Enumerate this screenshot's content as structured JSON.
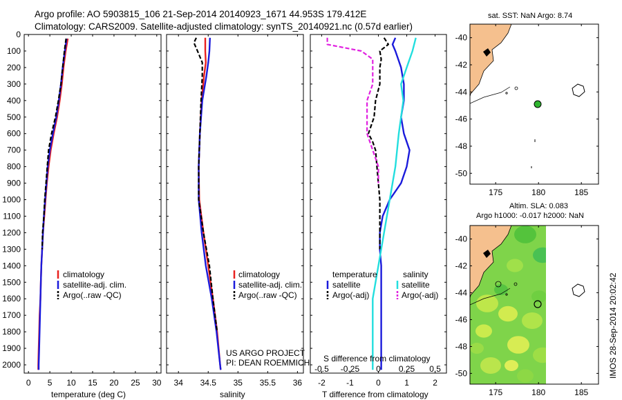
{
  "header": {
    "line1": "Argo profile: AO 5903815_106 21-Sep-2014 20140923_1671 44.953S 179.412E",
    "line2": "Climatology: CARS2009. Satellite-adjusted climatology: synTS_20140921.nc (0.57d earlier)"
  },
  "colors": {
    "climatology": "#e8201e",
    "satellite": "#1a1adb",
    "argo": "#000000",
    "sat_diff_S": "#22dede",
    "argo_diff_S": "#e020e0",
    "land": "#f5c08e",
    "argo_marker": "#2fb52f"
  },
  "chart_data": [
    {
      "type": "line",
      "name": "temperature-profile",
      "xlabel": "temperature (deg C)",
      "xlim": [
        -1,
        31
      ],
      "ylim": [
        2050,
        0
      ],
      "xticks": [
        0,
        5,
        10,
        15,
        20,
        25,
        30
      ],
      "yticks": [
        0,
        100,
        200,
        300,
        400,
        500,
        600,
        700,
        800,
        900,
        1000,
        1100,
        1200,
        1300,
        1400,
        1500,
        1600,
        1700,
        1800,
        1900,
        2000
      ],
      "legend": [
        "climatology",
        "satellite-adj. clim.",
        "Argo(..raw -QC)"
      ],
      "series": [
        {
          "name": "climatology",
          "style": "solid",
          "color": "#e8201e",
          "depth": [
            25,
            100,
            200,
            300,
            400,
            500,
            600,
            700,
            800,
            900,
            1000,
            1100,
            1200,
            1300,
            1400,
            1500,
            1600,
            1700,
            1800,
            1900,
            2000,
            2030
          ],
          "values": [
            9.2,
            8.7,
            8.2,
            7.8,
            7.3,
            6.7,
            5.9,
            5.2,
            4.7,
            4.3,
            4.0,
            3.7,
            3.4,
            3.2,
            3.0,
            2.9,
            2.8,
            2.6,
            2.5,
            2.4,
            2.3,
            2.3
          ]
        },
        {
          "name": "satellite-adj. clim.",
          "style": "solid",
          "color": "#1a1adb",
          "depth": [
            25,
            100,
            200,
            300,
            400,
            500,
            600,
            700,
            800,
            900,
            1000,
            1100,
            1200,
            1300,
            1400,
            1500,
            1600,
            1700,
            1800,
            1900,
            2000,
            2030
          ],
          "values": [
            8.9,
            8.5,
            8.0,
            7.6,
            7.1,
            6.5,
            5.7,
            5.0,
            4.5,
            4.2,
            3.9,
            3.6,
            3.4,
            3.2,
            3.0,
            2.9,
            2.8,
            2.7,
            2.6,
            2.5,
            2.4,
            2.4
          ]
        },
        {
          "name": "Argo(..raw -QC)",
          "style": "dashed",
          "color": "#000000",
          "depth": [
            25,
            100,
            200,
            300,
            400,
            500,
            600,
            700,
            800,
            900,
            1000,
            1100,
            1200,
            1300
          ],
          "values": [
            8.8,
            8.4,
            8.0,
            7.6,
            7.0,
            6.3,
            5.4,
            4.7,
            4.4,
            4.1,
            3.8,
            3.6,
            3.3,
            3.2
          ]
        }
      ]
    },
    {
      "type": "line",
      "name": "salinity-profile",
      "xlabel": "salinity",
      "xlim": [
        33.8,
        36.1
      ],
      "ylim": [
        2050,
        0
      ],
      "xticks": [
        34,
        34.5,
        35,
        35.5,
        36
      ],
      "legend": [
        "climatology",
        "satellite-adj. clim.",
        "Argo(..raw -QC)"
      ],
      "annotation": [
        "US ARGO PROJECT",
        "PI: DEAN ROEMMICH"
      ],
      "series": [
        {
          "name": "climatology",
          "style": "solid",
          "color": "#e8201e",
          "depth": [
            20,
            100,
            170,
            250,
            400,
            600,
            800,
            1000,
            1200,
            1400,
            1600,
            1800,
            2000,
            2030
          ],
          "values": [
            34.45,
            34.45,
            34.46,
            34.43,
            34.39,
            34.36,
            34.34,
            34.35,
            34.42,
            34.5,
            34.58,
            34.65,
            34.7,
            34.71
          ]
        },
        {
          "name": "satellite-adj. clim.",
          "style": "solid",
          "color": "#1a1adb",
          "depth": [
            20,
            100,
            170,
            250,
            400,
            600,
            800,
            1000,
            1200,
            1400,
            1600,
            1800,
            2000,
            2030
          ],
          "values": [
            34.53,
            34.52,
            34.5,
            34.47,
            34.4,
            34.36,
            34.34,
            34.34,
            34.39,
            34.46,
            34.56,
            34.64,
            34.7,
            34.71
          ]
        },
        {
          "name": "Argo(..raw -QC)",
          "style": "dashed",
          "color": "#000000",
          "depth": [
            20,
            50,
            100,
            170,
            250,
            400,
            600,
            800,
            1000,
            1200,
            1400,
            1600,
            1800
          ],
          "values": [
            34.3,
            34.26,
            34.32,
            34.4,
            34.4,
            34.38,
            34.36,
            34.34,
            34.34,
            34.42,
            34.52,
            34.58,
            34.65
          ]
        }
      ]
    },
    {
      "type": "line",
      "name": "difference-profile",
      "xlabel": "T difference from climatology",
      "xlabel2": "S difference from climatology",
      "xlim": [
        -2.4,
        2.4
      ],
      "ylim": [
        2050,
        0
      ],
      "xticks": [
        -2,
        -1,
        0,
        1,
        2
      ],
      "xticks2": [
        -0.5,
        -0.25,
        0,
        0.25,
        0.5
      ],
      "legend_groups": [
        "temperature",
        "salinity"
      ],
      "legend": [
        "satellite",
        "Argo(-adj)",
        "satellite",
        "Argo(-adj)"
      ],
      "series": [
        {
          "name": "T satellite",
          "style": "solid",
          "color": "#1a1adb",
          "depth": [
            20,
            60,
            100,
            150,
            200,
            300,
            400,
            500,
            600,
            700,
            800,
            900,
            1000,
            1100,
            1200,
            1300,
            1400,
            1600,
            1800,
            2000,
            2030
          ],
          "values": [
            0.6,
            0.5,
            0.6,
            0.7,
            0.8,
            0.9,
            0.9,
            0.8,
            0.9,
            1.1,
            1.0,
            0.8,
            0.4,
            0.15,
            0.05,
            0.05,
            0.1,
            0.1,
            0.1,
            0.1,
            0.1
          ]
        },
        {
          "name": "T Argo(-adj)",
          "style": "dashed",
          "color": "#000000",
          "depth": [
            20,
            60,
            100,
            150,
            200,
            300,
            400,
            500,
            600,
            650,
            700,
            800,
            900,
            1000,
            1100,
            1200,
            1300
          ],
          "values": [
            0.2,
            0.35,
            0.05,
            0.1,
            0.05,
            0.05,
            -0.1,
            -0.15,
            -0.35,
            -0.2,
            -0.1,
            -0.05,
            0.0,
            0.05,
            0.05,
            0.05,
            0.05
          ]
        },
        {
          "name": "S satellite",
          "style": "solid",
          "color": "#22dede",
          "depth": [
            20,
            100,
            200,
            300,
            400,
            600,
            800,
            1000,
            1200,
            1400,
            1600,
            1800,
            2000,
            2030
          ],
          "values": [
            0.33,
            0.3,
            0.25,
            0.2,
            0.22,
            0.18,
            0.15,
            0.1,
            0.05,
            0.0,
            -0.05,
            -0.05,
            -0.05,
            -0.05
          ]
        },
        {
          "name": "S Argo(-adj)",
          "style": "dashed",
          "color": "#e020e0",
          "depth": [
            20,
            60,
            100,
            150,
            200,
            300,
            400,
            500,
            600,
            700,
            800,
            900
          ],
          "values": [
            -0.45,
            -0.45,
            -0.15,
            -0.05,
            -0.05,
            -0.05,
            -0.1,
            -0.1,
            -0.1,
            -0.05,
            0.0,
            0.0
          ]
        }
      ]
    }
  ],
  "maps": {
    "top": {
      "title": "sat. SST: NaN Argo: 8.74",
      "xticks": [
        "175",
        "180",
        "185"
      ],
      "yticks": [
        "-40",
        "-42",
        "-44",
        "-46",
        "-48",
        "-50"
      ]
    },
    "bottom": {
      "title1": "Altim. SLA: 0.083",
      "title2": "Argo h1000: -0.017 h2000: NaN",
      "xticks": [
        "175",
        "180",
        "185"
      ],
      "yticks": [
        "-40",
        "-42",
        "-44",
        "-46",
        "-48",
        "-50"
      ]
    }
  },
  "footer_stamp": "IMOS 28-Sep-2014 20:02:42"
}
